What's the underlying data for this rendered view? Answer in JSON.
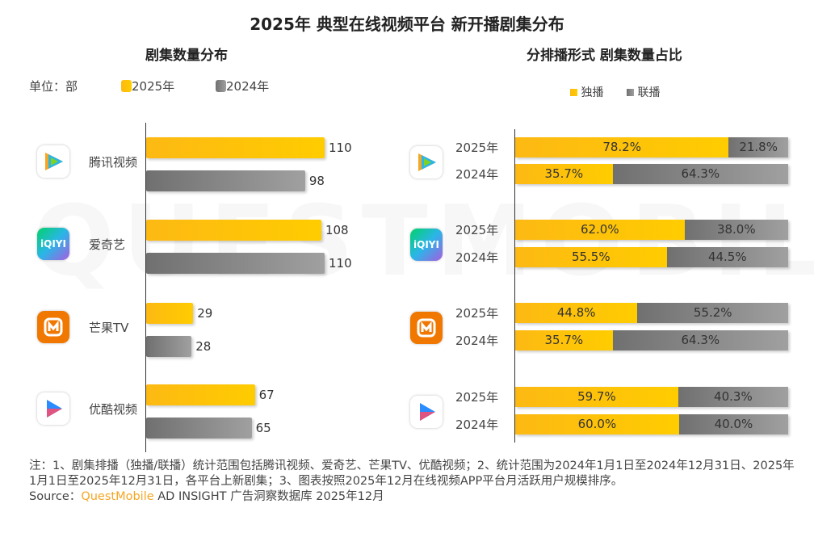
{
  "title": "2025年 典型在线视频平台 新开播剧集分布",
  "legend_colors": {
    "y2025": "#fdb913",
    "y2024": "#888888",
    "exclusive": "#fdb913",
    "joint": "#888888"
  },
  "chart_data": [
    {
      "type": "bar",
      "orientation": "horizontal",
      "title": "剧集数量分布",
      "unit_label": "单位：部",
      "categories": [
        "腾讯视频",
        "爱奇艺",
        "芒果TV",
        "优酷视频"
      ],
      "series": [
        {
          "name": "2025年",
          "values": [
            110,
            108,
            29,
            67
          ]
        },
        {
          "name": "2024年",
          "values": [
            98,
            110,
            28,
            65
          ]
        }
      ],
      "xlim": [
        0,
        110
      ],
      "grid": false,
      "legend": "top-left"
    },
    {
      "type": "bar",
      "orientation": "horizontal",
      "stacked": true,
      "percent": true,
      "title": "分排播形式 剧集数量占比",
      "platforms": [
        "腾讯视频",
        "爱奇艺",
        "芒果TV",
        "优酷视频"
      ],
      "rows": [
        {
          "platform": "腾讯视频",
          "year": "2025年",
          "exclusive": "78.2%",
          "joint": "21.8%"
        },
        {
          "platform": "腾讯视频",
          "year": "2024年",
          "exclusive": "35.7%",
          "joint": "64.3%"
        },
        {
          "platform": "爱奇艺",
          "year": "2025年",
          "exclusive": "62.0%",
          "joint": "38.0%"
        },
        {
          "platform": "爱奇艺",
          "year": "2024年",
          "exclusive": "55.5%",
          "joint": "44.5%"
        },
        {
          "platform": "芒果TV",
          "year": "2025年",
          "exclusive": "44.8%",
          "joint": "55.2%"
        },
        {
          "platform": "芒果TV",
          "year": "2024年",
          "exclusive": "35.7%",
          "joint": "64.3%"
        },
        {
          "platform": "优酷视频",
          "year": "2025年",
          "exclusive": "59.7%",
          "joint": "40.3%"
        },
        {
          "platform": "优酷视频",
          "year": "2024年",
          "exclusive": "60.0%",
          "joint": "40.0%"
        }
      ],
      "series_names": [
        "独播",
        "联播"
      ],
      "legend": "top-center",
      "grid": false
    }
  ],
  "icons": [
    "tencent-video-logo",
    "iqiyi-logo",
    "mango-tv-logo",
    "youku-logo"
  ],
  "iqiyi_logo_text": "iQIYI",
  "watermark": "QUESTMOBILE",
  "note": "注：1、剧集排播（独播/联播）统计范围包括腾讯视频、爱奇艺、芒果TV、优酷视频；2、统计范围为2024年1月1日至2024年12月31日、2025年1月1日至2025年12月31日，各平台上新剧集；3、图表按照2025年12月在线视频APP平台月活跃用户规模排序。",
  "source": {
    "prefix": "Source：",
    "brand": "QuestMobile",
    "rest": " AD INSIGHT 广告洞察数据库 2025年12月"
  }
}
